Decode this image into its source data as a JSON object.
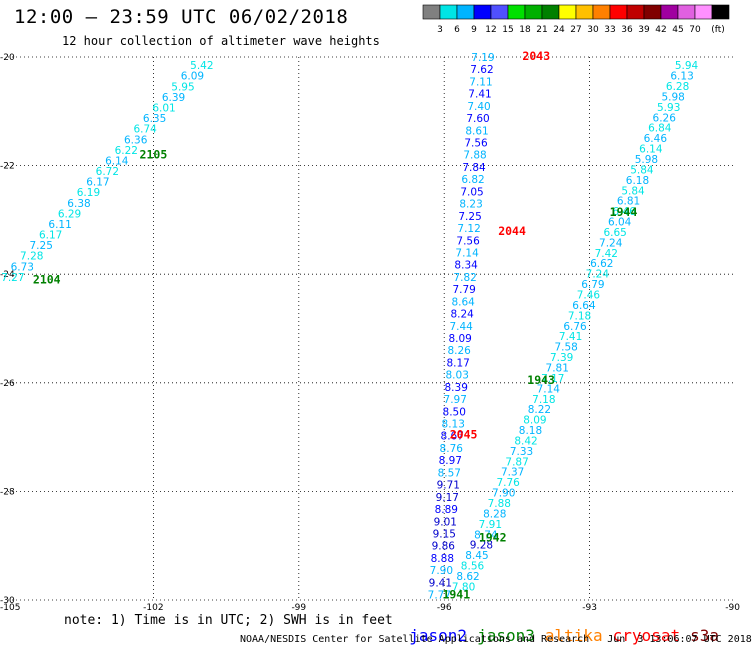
{
  "title": "12:00 – 23:59 UTC 06/02/2018",
  "subtitle": "12 hour collection of altimeter wave heights",
  "colorbar": {
    "colors": [
      "#808080",
      "#00e5e5",
      "#00b4ff",
      "#0000ff",
      "#5050ff",
      "#00e000",
      "#00b000",
      "#008000",
      "#ffff00",
      "#ffc000",
      "#ff8000",
      "#ff0000",
      "#c00000",
      "#800000",
      "#a000a0",
      "#e060e0",
      "#ff90ff",
      "#000000"
    ],
    "labels": [
      "3",
      "6",
      "9",
      "12",
      "15",
      "18",
      "21",
      "24",
      "27",
      "30",
      "33",
      "36",
      "39",
      "42",
      "45",
      "70"
    ],
    "unit": "(ft)"
  },
  "chart_data": {
    "type": "scatter",
    "xlim": [
      -105,
      -90
    ],
    "ylim": [
      -30,
      -20
    ],
    "xticks": [
      -105,
      -102,
      -99,
      -96,
      -93,
      -90
    ],
    "yticks": [
      -20,
      -22,
      -24,
      -26,
      -28,
      -30
    ],
    "xtick_labels": [
      "-105",
      "-102",
      "-99",
      "-96",
      "-93",
      "-90"
    ],
    "ytick_labels": [
      "-20",
      "-22",
      "-24",
      "-26",
      "-28",
      "-30"
    ],
    "grid": true,
    "tracks": [
      {
        "lon_start": -101.0,
        "lat_start": -20.15,
        "lon_end": -104.9,
        "lat_end": -24.05,
        "values": [
          "5.42",
          "6.09",
          "5.95",
          "6.39",
          "6.01",
          "6.35",
          "6.74",
          "6.36",
          "6.22",
          "6.14",
          "6.72",
          "6.17",
          "6.19",
          "6.38",
          "6.29",
          "6.11",
          "6.17",
          "7.25",
          "7.28",
          "6.73",
          "7.27"
        ],
        "colors": [
          "#00e5e5",
          "#00b4ff"
        ],
        "time_labels": [
          {
            "text": "2105",
            "lon": -102.0,
            "lat": -21.8,
            "color": "#008000"
          },
          {
            "text": "2104",
            "lon": -104.2,
            "lat": -24.1,
            "color": "#008000"
          }
        ]
      },
      {
        "lon_start": -95.2,
        "lat_start": -20.0,
        "lon_end": -96.1,
        "lat_end": -29.9,
        "values": [
          "7.19",
          "7.62",
          "7.11",
          "7.41",
          "7.40",
          "7.60",
          "8.61",
          "7.56",
          "7.88",
          "7.84",
          "6.82",
          "7.05",
          "8.23",
          "7.25",
          "7.12",
          "7.56",
          "7.14",
          "8.34",
          "7.82",
          "7.79",
          "8.64",
          "8.24",
          "7.44",
          "8.09",
          "8.26",
          "8.17",
          "8.03",
          "8.39",
          "7.97",
          "8.50",
          "8.13",
          "8.67",
          "8.76",
          "8.97",
          "8.57",
          "9.71",
          "9.17",
          "8.89",
          "9.01",
          "9.15",
          "9.86",
          "8.88",
          "7.90",
          "9.41",
          "7.77"
        ],
        "colors": [
          "#00b4ff",
          "#0000ff"
        ],
        "time_labels": [
          {
            "text": "2043",
            "lon": -94.1,
            "lat": -19.98,
            "color": "#ff0000"
          },
          {
            "text": "2044",
            "lon": -94.6,
            "lat": -23.2,
            "color": "#ff0000"
          },
          {
            "text": "2045",
            "lon": -95.6,
            "lat": -26.95,
            "color": "#ff0000"
          }
        ]
      },
      {
        "lon_start": -91.0,
        "lat_start": -20.15,
        "lon_end": -95.6,
        "lat_end": -29.75,
        "values": [
          "5.94",
          "6.13",
          "6.28",
          "5.98",
          "5.93",
          "6.26",
          "6.84",
          "6.46",
          "6.14",
          "5.98",
          "5.84",
          "6.18",
          "5.84",
          "6.81",
          "6.46",
          "6.04",
          "6.65",
          "7.24",
          "7.42",
          "6.62",
          "7.24",
          "6.79",
          "7.46",
          "6.64",
          "7.18",
          "6.76",
          "7.41",
          "7.58",
          "7.39",
          "7.81",
          "7.17",
          "7.14",
          "7.18",
          "8.22",
          "8.09",
          "8.18",
          "8.42",
          "7.33",
          "7.87",
          "7.37",
          "7.76",
          "7.90",
          "7.88",
          "8.28",
          "7.91",
          "8.74",
          "9.28",
          "8.45",
          "8.56",
          "8.62",
          "7.80"
        ],
        "colors": [
          "#00e5e5",
          "#00b4ff"
        ],
        "time_labels": [
          {
            "text": "1944",
            "lon": -92.3,
            "lat": -22.85,
            "color": "#008000"
          },
          {
            "text": "1943",
            "lon": -94.0,
            "lat": -25.95,
            "color": "#008000"
          },
          {
            "text": "1942",
            "lon": -95.0,
            "lat": -28.85,
            "color": "#008000"
          },
          {
            "text": "1941",
            "lon": -95.75,
            "lat": -29.9,
            "color": "#008000"
          }
        ]
      }
    ]
  },
  "note": "note: 1) Time is in UTC; 2) SWH is in feet",
  "legend": [
    {
      "name": "jason2",
      "color": "#0000ff"
    },
    {
      "name": "jason3",
      "color": "#008000"
    },
    {
      "name": "altika",
      "color": "#ff8000"
    },
    {
      "name": "cryosat",
      "color": "#ff0000"
    },
    {
      "name": "s3a",
      "color": "#800000"
    }
  ],
  "footer": {
    "credit": "NOAA/NESDIS Center for Satellite Applications and Research",
    "timestamp": "Jun  3 13:06:07 UTC 2018"
  }
}
